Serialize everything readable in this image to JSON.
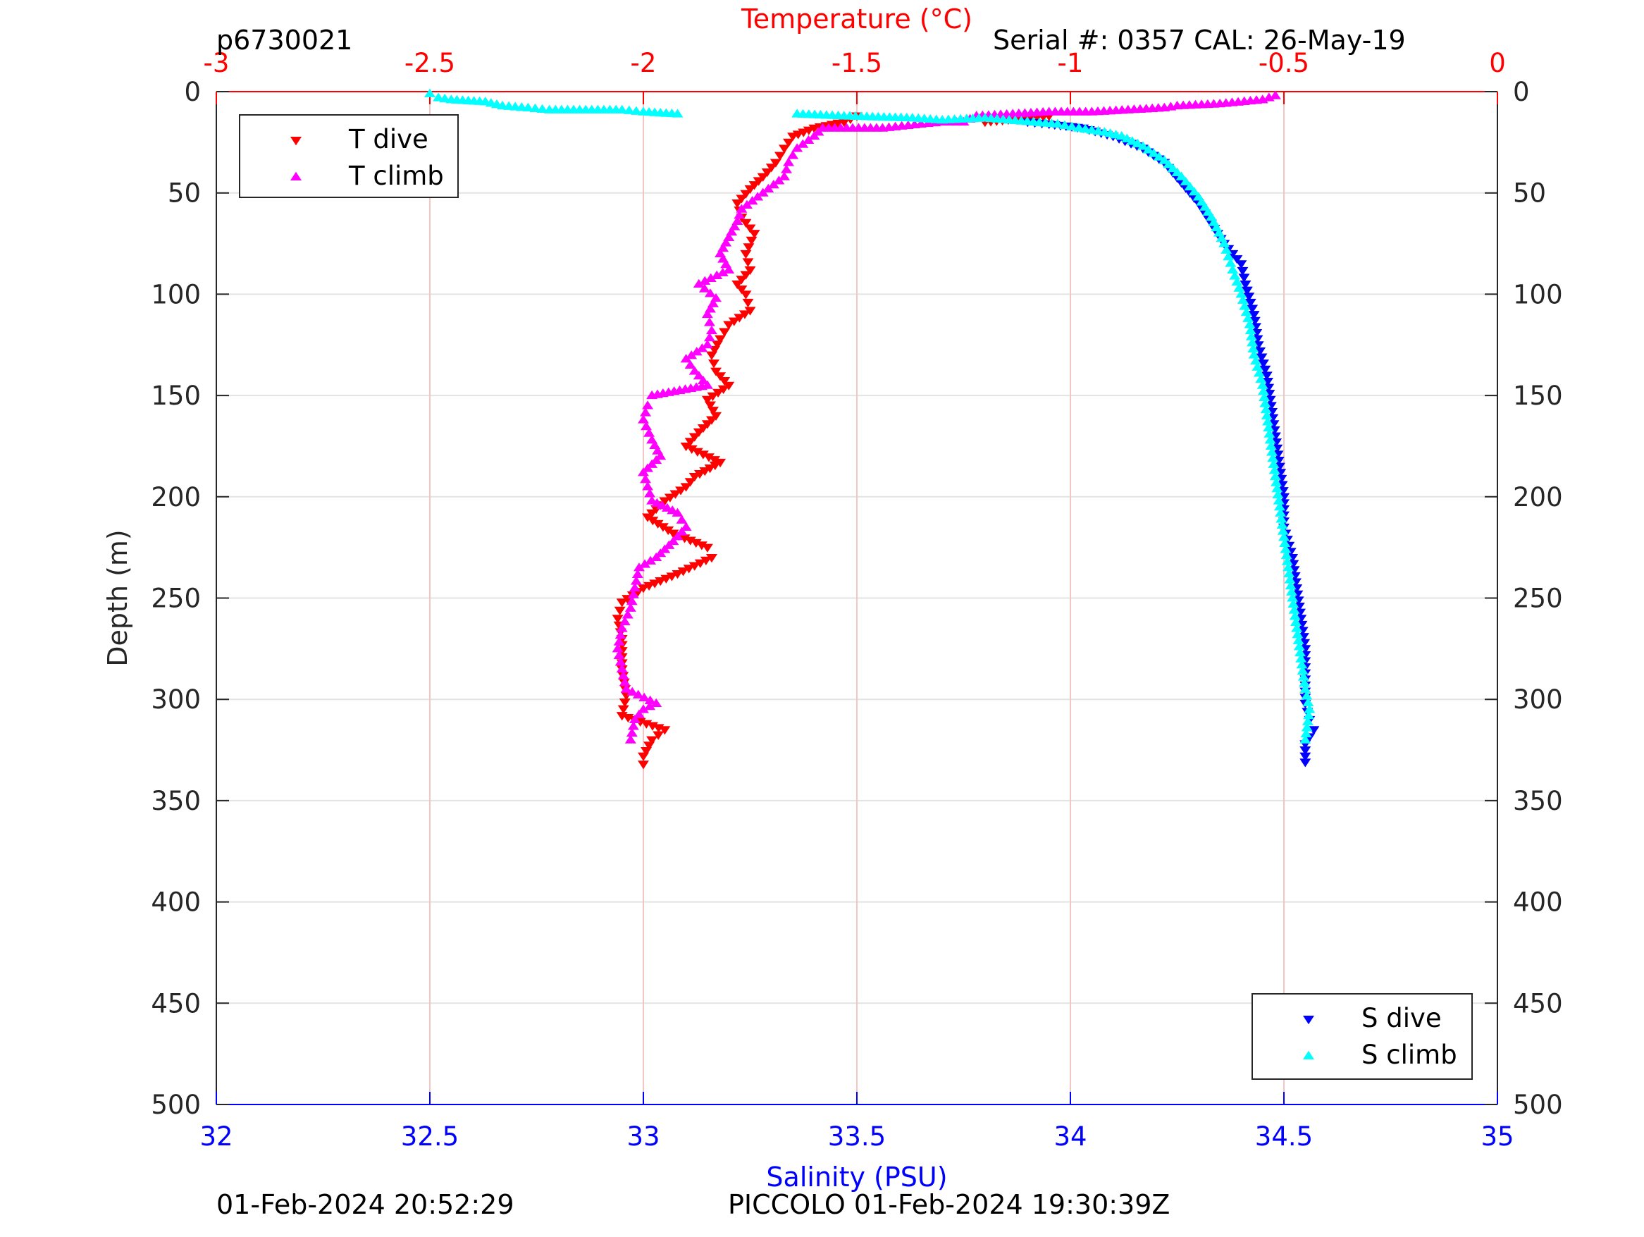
{
  "header": {
    "profile_id": "p6730021",
    "serial": "Serial #: 0357  CAL: 26-May-19"
  },
  "footer": {
    "timestamp_left": "01-Feb-2024 20:52:29",
    "timestamp_right": "PICCOLO 01-Feb-2024 19:30:39Z"
  },
  "colors": {
    "t_dive": "#ff0000",
    "t_climb": "#ff00ff",
    "s_dive": "#0000ff",
    "s_climb": "#00ffff",
    "temp_axis": "#ff0000",
    "sal_axis": "#0000ff",
    "grid": "#f3c6c6"
  },
  "chart_data": {
    "type": "scatter",
    "y_axis": {
      "label": "Depth (m)",
      "lim": [
        0,
        500
      ],
      "reversed": true,
      "ticks": [
        0,
        50,
        100,
        150,
        200,
        250,
        300,
        350,
        400,
        450,
        500
      ],
      "tick_labels": [
        "0",
        "50",
        "100",
        "150",
        "200",
        "250",
        "300",
        "350",
        "400",
        "450",
        "500"
      ]
    },
    "x_axis_top": {
      "label": "Temperature (°C)",
      "lim": [
        -3,
        0
      ],
      "ticks": [
        -3,
        -2.5,
        -2,
        -1.5,
        -1,
        -0.5,
        0
      ],
      "tick_labels": [
        "-3",
        "-2.5",
        "-2",
        "-1.5",
        "-1",
        "-0.5",
        "0"
      ],
      "grid": true
    },
    "x_axis_bottom": {
      "label": "Salinity (PSU)",
      "lim": [
        32,
        35
      ],
      "ticks": [
        32,
        32.5,
        33,
        33.5,
        34,
        34.5,
        35
      ],
      "tick_labels": [
        "32",
        "32.5",
        "33",
        "33.5",
        "34",
        "34.5",
        "35"
      ]
    },
    "legends": [
      {
        "position": "top-left",
        "entries": [
          "T dive",
          "T climb"
        ]
      },
      {
        "position": "bottom-right",
        "entries": [
          "S dive",
          "S climb"
        ]
      }
    ],
    "series": [
      {
        "name": "T dive",
        "axis": "temperature",
        "marker": "triangle-down",
        "points": [
          [
            -1.5,
            12
          ],
          [
            -1.53,
            15
          ],
          [
            -1.6,
            18
          ],
          [
            -1.65,
            22
          ],
          [
            -1.67,
            28
          ],
          [
            -1.69,
            35
          ],
          [
            -1.72,
            42
          ],
          [
            -1.75,
            48
          ],
          [
            -1.78,
            55
          ],
          [
            -1.77,
            62
          ],
          [
            -1.74,
            70
          ],
          [
            -1.76,
            80
          ],
          [
            -1.75,
            88
          ],
          [
            -1.78,
            95
          ],
          [
            -1.76,
            100
          ],
          [
            -1.75,
            108
          ],
          [
            -1.8,
            115
          ],
          [
            -1.82,
            122
          ],
          [
            -1.84,
            130
          ],
          [
            -1.83,
            138
          ],
          [
            -1.8,
            145
          ],
          [
            -1.85,
            152
          ],
          [
            -1.83,
            160
          ],
          [
            -1.87,
            168
          ],
          [
            -1.9,
            175
          ],
          [
            -1.82,
            183
          ],
          [
            -1.88,
            190
          ],
          [
            -1.9,
            195
          ],
          [
            -1.95,
            202
          ],
          [
            -1.99,
            210
          ],
          [
            -1.93,
            218
          ],
          [
            -1.85,
            225
          ],
          [
            -1.84,
            230
          ],
          [
            -1.92,
            238
          ],
          [
            -2.0,
            245
          ],
          [
            -2.05,
            252
          ],
          [
            -2.06,
            260
          ],
          [
            -2.05,
            270
          ],
          [
            -2.05,
            285
          ],
          [
            -2.04,
            298
          ],
          [
            -2.05,
            308
          ],
          [
            -1.95,
            315
          ],
          [
            -1.98,
            320
          ],
          [
            -2.0,
            328
          ],
          [
            -2.0,
            332
          ],
          [
            -1.2,
            15
          ],
          [
            -1.05,
            12
          ]
        ]
      },
      {
        "name": "T climb",
        "axis": "temperature",
        "marker": "triangle-up",
        "points": [
          [
            -2.03,
            320
          ],
          [
            -2.02,
            310
          ],
          [
            -2.0,
            305
          ],
          [
            -1.97,
            302
          ],
          [
            -2.04,
            295
          ],
          [
            -2.05,
            285
          ],
          [
            -2.06,
            275
          ],
          [
            -2.05,
            265
          ],
          [
            -2.03,
            255
          ],
          [
            -2.02,
            245
          ],
          [
            -2.01,
            235
          ],
          [
            -1.97,
            230
          ],
          [
            -1.93,
            222
          ],
          [
            -1.9,
            215
          ],
          [
            -1.92,
            208
          ],
          [
            -1.98,
            202
          ],
          [
            -1.99,
            195
          ],
          [
            -2.0,
            188
          ],
          [
            -1.96,
            180
          ],
          [
            -1.98,
            172
          ],
          [
            -2.0,
            162
          ],
          [
            -1.99,
            155
          ],
          [
            -1.98,
            150
          ],
          [
            -1.85,
            145
          ],
          [
            -1.88,
            138
          ],
          [
            -1.9,
            132
          ],
          [
            -1.85,
            125
          ],
          [
            -1.84,
            118
          ],
          [
            -1.85,
            110
          ],
          [
            -1.83,
            102
          ],
          [
            -1.87,
            95
          ],
          [
            -1.8,
            88
          ],
          [
            -1.82,
            80
          ],
          [
            -1.8,
            72
          ],
          [
            -1.78,
            64
          ],
          [
            -1.77,
            58
          ],
          [
            -1.72,
            50
          ],
          [
            -1.67,
            42
          ],
          [
            -1.66,
            35
          ],
          [
            -1.64,
            28
          ],
          [
            -1.6,
            22
          ],
          [
            -1.58,
            18
          ],
          [
            -1.44,
            18
          ],
          [
            -1.35,
            16
          ],
          [
            -1.3,
            15
          ],
          [
            -1.25,
            15
          ],
          [
            -1.22,
            12
          ],
          [
            -1.05,
            10
          ],
          [
            -0.95,
            10
          ],
          [
            -0.78,
            8
          ],
          [
            -0.75,
            7
          ],
          [
            -0.65,
            6
          ],
          [
            -0.55,
            4
          ],
          [
            -0.52,
            2
          ]
        ]
      },
      {
        "name": "S dive",
        "axis": "salinity",
        "marker": "triangle-down",
        "points": [
          [
            33.9,
            15
          ],
          [
            33.95,
            16
          ],
          [
            34.03,
            18
          ],
          [
            34.1,
            22
          ],
          [
            34.17,
            28
          ],
          [
            34.22,
            35
          ],
          [
            34.26,
            45
          ],
          [
            34.3,
            55
          ],
          [
            34.33,
            65
          ],
          [
            34.36,
            75
          ],
          [
            34.4,
            85
          ],
          [
            34.41,
            95
          ],
          [
            34.43,
            110
          ],
          [
            34.44,
            125
          ],
          [
            34.46,
            140
          ],
          [
            34.47,
            155
          ],
          [
            34.48,
            170
          ],
          [
            34.49,
            185
          ],
          [
            34.5,
            200
          ],
          [
            34.5,
            215
          ],
          [
            34.52,
            230
          ],
          [
            34.53,
            245
          ],
          [
            34.54,
            260
          ],
          [
            34.55,
            275
          ],
          [
            34.55,
            290
          ],
          [
            34.55,
            302
          ],
          [
            34.56,
            310
          ],
          [
            34.57,
            315
          ],
          [
            34.55,
            322
          ],
          [
            34.55,
            328
          ],
          [
            34.55,
            331
          ]
        ]
      },
      {
        "name": "S climb",
        "axis": "salinity",
        "marker": "triangle-up",
        "points": [
          [
            34.55,
            320
          ],
          [
            34.56,
            305
          ],
          [
            34.55,
            295
          ],
          [
            34.54,
            280
          ],
          [
            34.53,
            265
          ],
          [
            34.52,
            250
          ],
          [
            34.51,
            235
          ],
          [
            34.5,
            220
          ],
          [
            34.49,
            205
          ],
          [
            34.48,
            190
          ],
          [
            34.47,
            175
          ],
          [
            34.46,
            160
          ],
          [
            34.45,
            145
          ],
          [
            34.43,
            130
          ],
          [
            34.42,
            115
          ],
          [
            34.4,
            100
          ],
          [
            34.38,
            88
          ],
          [
            34.36,
            75
          ],
          [
            34.33,
            62
          ],
          [
            34.3,
            52
          ],
          [
            34.26,
            42
          ],
          [
            34.22,
            34
          ],
          [
            34.17,
            27
          ],
          [
            34.12,
            22
          ],
          [
            34.08,
            20
          ],
          [
            34.02,
            18
          ],
          [
            33.97,
            16
          ],
          [
            33.8,
            13
          ],
          [
            33.7,
            14
          ],
          [
            33.63,
            13
          ],
          [
            33.47,
            12
          ],
          [
            33.36,
            11
          ],
          [
            33.08,
            11
          ],
          [
            33.0,
            10
          ],
          [
            32.95,
            9
          ],
          [
            32.78,
            9
          ],
          [
            32.73,
            8
          ],
          [
            32.67,
            7
          ],
          [
            32.63,
            5
          ],
          [
            32.55,
            4
          ],
          [
            32.52,
            3
          ],
          [
            32.5,
            1
          ]
        ]
      }
    ]
  }
}
